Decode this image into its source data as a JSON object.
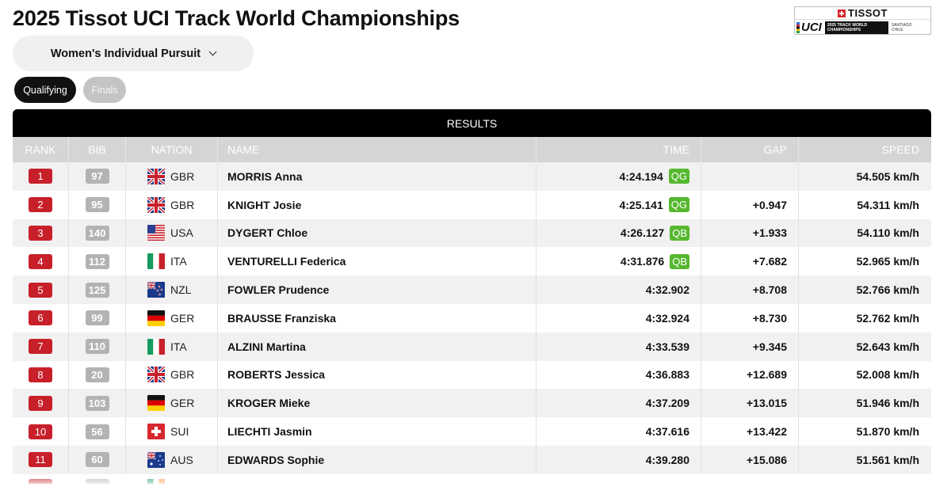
{
  "page": {
    "title": "2025 Tissot UCI Track World Championships"
  },
  "logo": {
    "brand": "TISSOT",
    "org": "UCI",
    "event": "2025 TRACK WORLD CHAMPIONSHIPS",
    "location": "SANTIAGO CHILE"
  },
  "event_select": {
    "value": "Women's Individual Pursuit"
  },
  "tabs": [
    {
      "label": "Qualifying",
      "active": true
    },
    {
      "label": "Finals",
      "active": false
    }
  ],
  "results": {
    "title": "RESULTS",
    "columns": [
      "RANK",
      "BIB",
      "NATION",
      "NAME",
      "TIME",
      "GAP",
      "SPEED"
    ],
    "rows": [
      {
        "rank": "1",
        "bib": "97",
        "nation": "GBR",
        "name": "MORRIS Anna",
        "time": "4:24.194",
        "q": "QG",
        "gap": "",
        "speed": "54.505 km/h"
      },
      {
        "rank": "2",
        "bib": "95",
        "nation": "GBR",
        "name": "KNIGHT Josie",
        "time": "4:25.141",
        "q": "QG",
        "gap": "+0.947",
        "speed": "54.311 km/h"
      },
      {
        "rank": "3",
        "bib": "140",
        "nation": "USA",
        "name": "DYGERT Chloe",
        "time": "4:26.127",
        "q": "QB",
        "gap": "+1.933",
        "speed": "54.110 km/h"
      },
      {
        "rank": "4",
        "bib": "112",
        "nation": "ITA",
        "name": "VENTURELLI Federica",
        "time": "4:31.876",
        "q": "QB",
        "gap": "+7.682",
        "speed": "52.965 km/h"
      },
      {
        "rank": "5",
        "bib": "125",
        "nation": "NZL",
        "name": "FOWLER Prudence",
        "time": "4:32.902",
        "q": "",
        "gap": "+8.708",
        "speed": "52.766 km/h"
      },
      {
        "rank": "6",
        "bib": "99",
        "nation": "GER",
        "name": "BRAUSSE Franziska",
        "time": "4:32.924",
        "q": "",
        "gap": "+8.730",
        "speed": "52.762 km/h"
      },
      {
        "rank": "7",
        "bib": "110",
        "nation": "ITA",
        "name": "ALZINI Martina",
        "time": "4:33.539",
        "q": "",
        "gap": "+9.345",
        "speed": "52.643 km/h"
      },
      {
        "rank": "8",
        "bib": "20",
        "nation": "GBR",
        "name": "ROBERTS Jessica",
        "time": "4:36.883",
        "q": "",
        "gap": "+12.689",
        "speed": "52.008 km/h"
      },
      {
        "rank": "9",
        "bib": "103",
        "nation": "GER",
        "name": "KROGER Mieke",
        "time": "4:37.209",
        "q": "",
        "gap": "+13.015",
        "speed": "51.946 km/h"
      },
      {
        "rank": "10",
        "bib": "56",
        "nation": "SUI",
        "name": "LIECHTI Jasmin",
        "time": "4:37.616",
        "q": "",
        "gap": "+13.422",
        "speed": "51.870 km/h"
      },
      {
        "rank": "11",
        "bib": "60",
        "nation": "AUS",
        "name": "EDWARDS Sophie",
        "time": "4:39.280",
        "q": "",
        "gap": "+15.086",
        "speed": "51.561 km/h"
      }
    ]
  },
  "colors": {
    "rank_badge": "#c8202a",
    "bib_badge": "#b3b3b3",
    "qualified_badge": "#55b82e",
    "header_bar": "#000000",
    "column_header": "#d5d5d5"
  }
}
